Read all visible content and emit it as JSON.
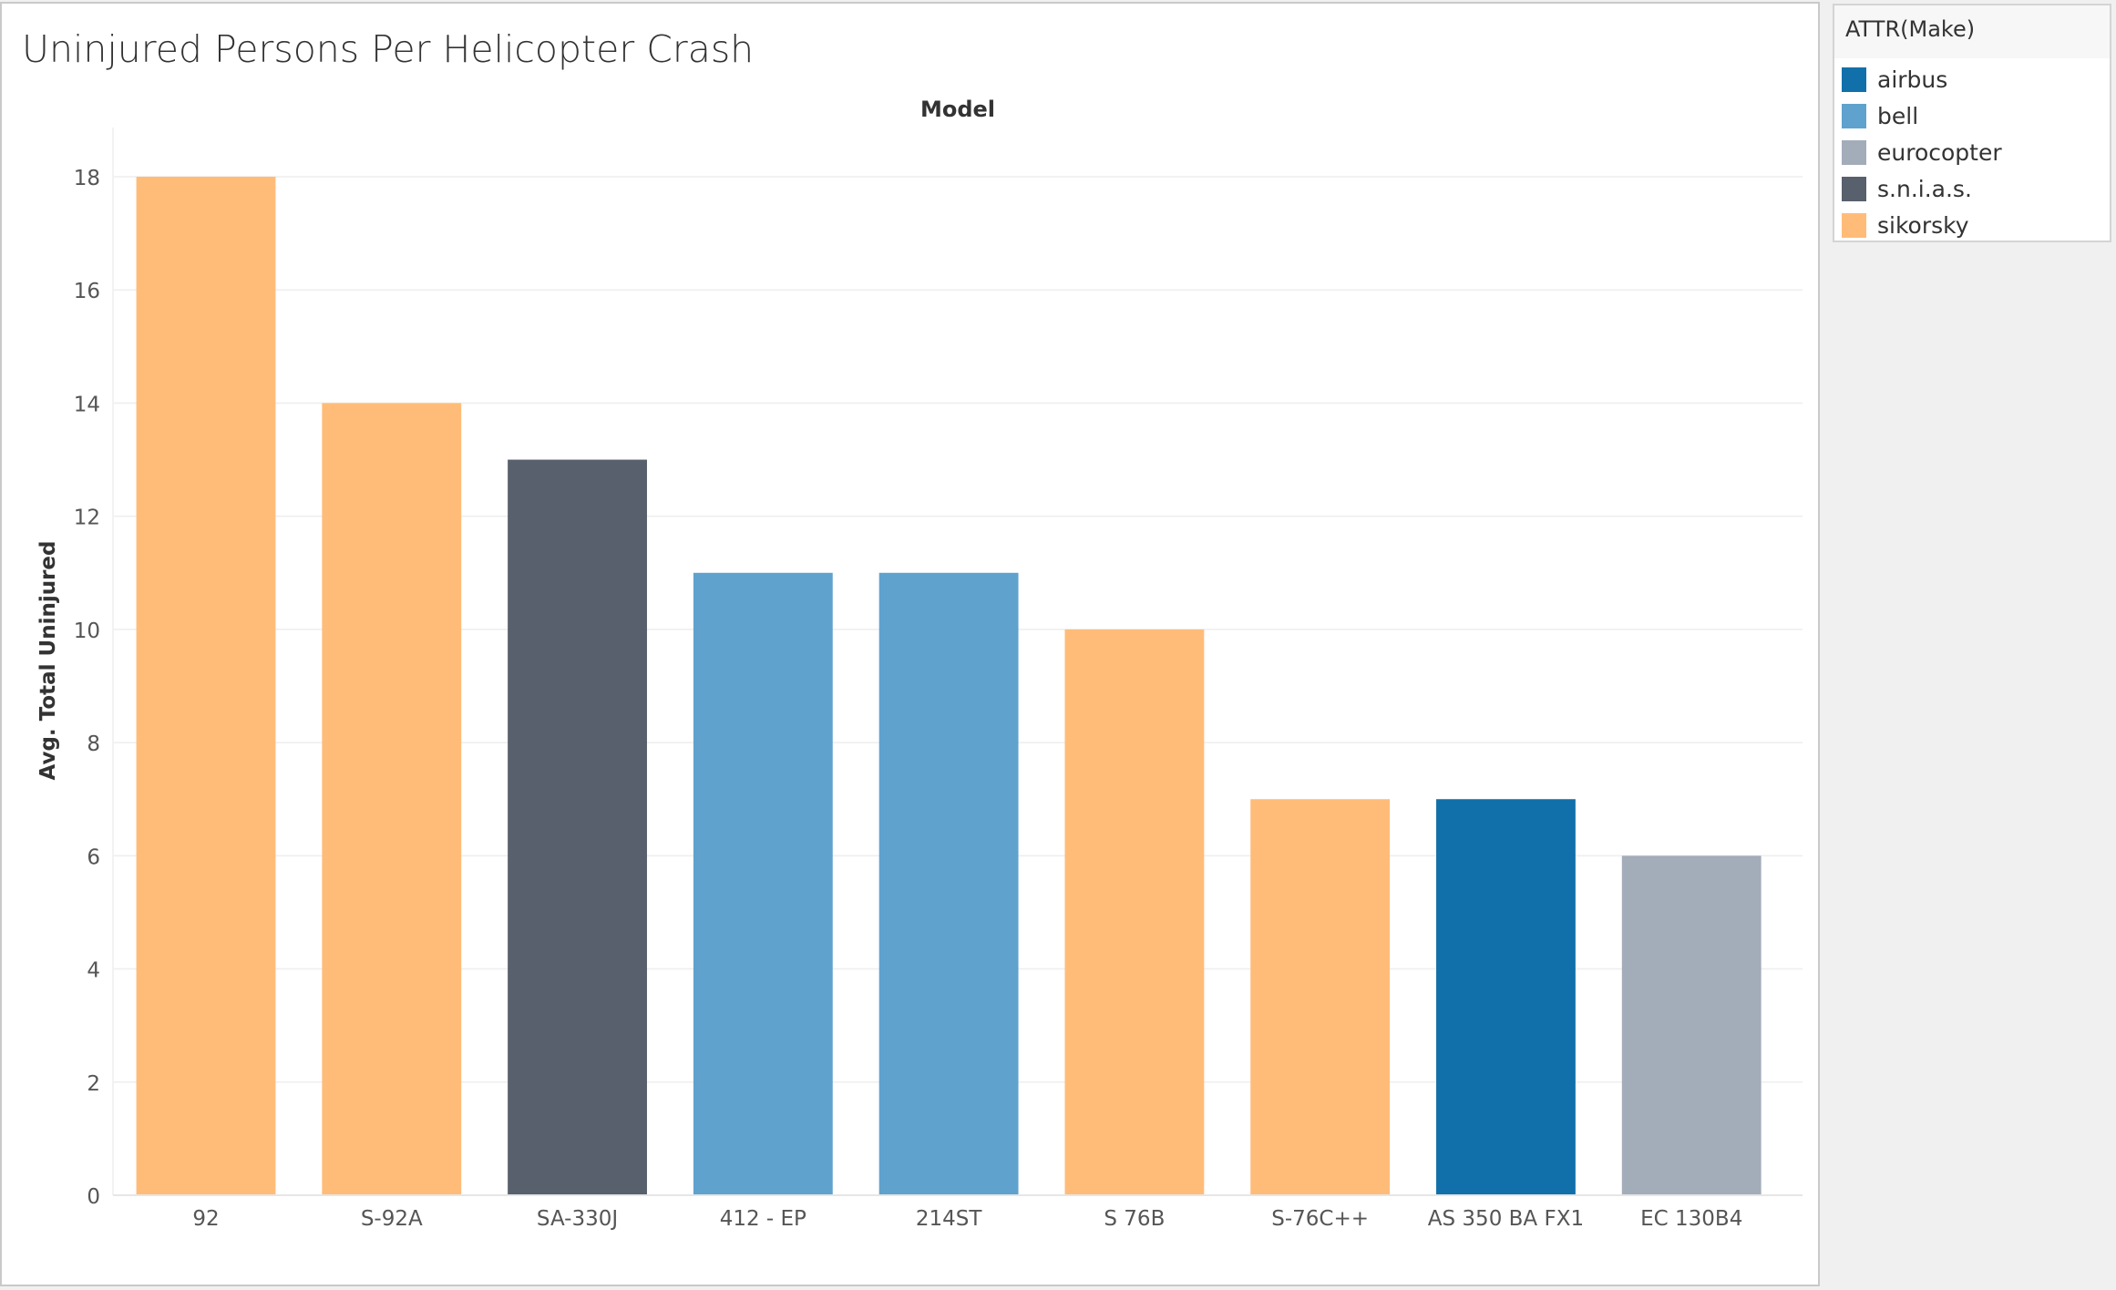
{
  "chart_data": {
    "type": "bar",
    "title": "Uninjured Persons Per Helicopter Crash",
    "column_header": "Model",
    "xlabel": "",
    "ylabel": "Avg. Total Uninjured",
    "ylim": [
      0,
      18
    ],
    "yticks": [
      0,
      2,
      4,
      6,
      8,
      10,
      12,
      14,
      16,
      18
    ],
    "grid": true,
    "categories": [
      "92",
      "S-92A",
      "SA-330J",
      "412 - EP",
      "214ST",
      "S 76B",
      "S-76C++",
      "AS 350 BA FX1",
      "EC 130B4"
    ],
    "values": [
      18,
      14,
      13,
      11,
      11,
      10,
      7,
      7,
      6
    ],
    "makes": [
      "sikorsky",
      "sikorsky",
      "s.n.i.a.s.",
      "bell",
      "bell",
      "sikorsky",
      "sikorsky",
      "airbus",
      "eurocopter"
    ],
    "legend": {
      "title": "ATTR(Make)",
      "placement": "right",
      "items": [
        {
          "name": "airbus",
          "color": "#1170aa"
        },
        {
          "name": "bell",
          "color": "#5fa2ce"
        },
        {
          "name": "eurocopter",
          "color": "#a3acb9"
        },
        {
          "name": "s.n.i.a.s.",
          "color": "#57606c"
        },
        {
          "name": "sikorsky",
          "color": "#ffbc79"
        }
      ]
    }
  }
}
